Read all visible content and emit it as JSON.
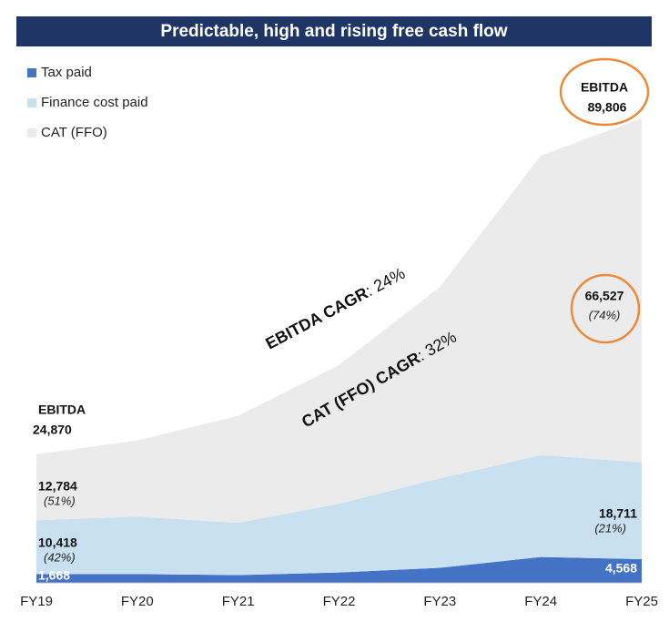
{
  "chart_data": {
    "type": "stacked-area",
    "title": "Predictable, high and rising free cash flow",
    "categories": [
      "FY19",
      "FY20",
      "FY21",
      "FY22",
      "FY23",
      "FY24",
      "FY25"
    ],
    "ylim": [
      0,
      100000
    ],
    "series": [
      {
        "name": "Tax paid",
        "color": "#4472c4",
        "values": [
          1668,
          1700,
          1500,
          2000,
          2900,
          5000,
          4568
        ],
        "value_labels": [
          "1,668",
          null,
          null,
          null,
          null,
          null,
          "4,568"
        ]
      },
      {
        "name": "Finance cost paid",
        "color": "#c9e0f0",
        "values": [
          10418,
          11100,
          10100,
          13300,
          17300,
          19700,
          18711
        ],
        "value_labels": [
          "10,418",
          null,
          null,
          null,
          null,
          null,
          "18,711"
        ],
        "share_labels": [
          "(42%)",
          null,
          null,
          null,
          null,
          null,
          "(21%)"
        ]
      },
      {
        "name": "CAT (FFO)",
        "color": "#ebebeb",
        "values": [
          12784,
          14700,
          20700,
          26800,
          37000,
          57900,
          66527
        ],
        "value_labels": [
          "12,784",
          null,
          null,
          null,
          null,
          null,
          "66,527"
        ],
        "share_labels": [
          "(51%)",
          null,
          null,
          null,
          null,
          null,
          "(74%)"
        ]
      }
    ],
    "total_labels": [
      {
        "label": "EBITDA",
        "value": 24870,
        "value_label": "24,870"
      },
      {
        "label": "EBITDA",
        "value": 89806,
        "value_label": "89,806"
      }
    ],
    "annotations": [
      {
        "bold": "EBITDA CAGR",
        "text": ": 24%"
      },
      {
        "bold": "CAT (FFO) CAGR",
        "text": ": 32%"
      }
    ],
    "legend": "top-left"
  }
}
